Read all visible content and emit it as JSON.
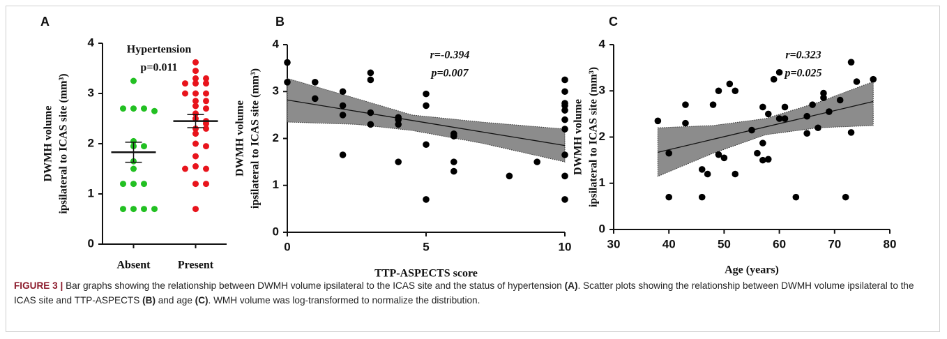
{
  "chart_data": [
    {
      "type": "strip",
      "letter": "A",
      "title": "Hypertension",
      "annotation": "p=0.011",
      "y_label": [
        "DWMH volume",
        "ipsilateral to ICAS site (mm³)"
      ],
      "categories": [
        "Absent",
        "Present"
      ],
      "series": [
        {
          "color": "#22c022",
          "values": [
            3.25,
            2.7,
            2.7,
            2.7,
            2.65,
            2.05,
            1.95,
            1.95,
            1.65,
            1.5,
            1.2,
            1.2,
            1.2,
            0.7,
            0.7,
            0.7,
            0.7
          ],
          "mean": 1.83,
          "sem": 0.2
        },
        {
          "color": "#e8141c",
          "values": [
            3.62,
            3.45,
            3.3,
            3.3,
            3.2,
            3.2,
            3.2,
            3.0,
            3.0,
            3.0,
            2.85,
            2.85,
            2.75,
            2.7,
            2.6,
            2.5,
            2.45,
            2.4,
            2.3,
            2.3,
            2.2,
            2.0,
            1.95,
            1.75,
            1.55,
            1.5,
            1.5,
            1.2,
            1.2,
            0.7
          ],
          "mean": 2.45,
          "sem": 0.13
        }
      ],
      "ylim": [
        0,
        4
      ],
      "yticks": [
        0,
        1,
        2,
        3,
        4
      ]
    },
    {
      "type": "scatter",
      "letter": "B",
      "annotation": [
        "r=-0.394",
        "p=0.007"
      ],
      "y_label": [
        "DWMH volume",
        "ipsilateral to ICAS site (mm³)"
      ],
      "x_label": "TTP-ASPECTS score",
      "x": [
        0,
        0,
        1,
        1,
        2,
        2,
        2,
        2,
        3,
        3,
        3,
        3,
        4,
        4,
        4,
        4,
        5,
        5,
        5,
        5,
        6,
        6,
        6,
        6,
        8,
        9,
        10,
        10,
        10,
        10,
        10,
        10,
        10,
        10,
        10,
        10
      ],
      "y": [
        3.62,
        3.2,
        3.2,
        2.85,
        3.0,
        2.7,
        2.5,
        1.65,
        3.4,
        3.25,
        2.55,
        2.3,
        2.45,
        2.4,
        2.3,
        1.5,
        2.95,
        2.7,
        1.87,
        0.7,
        2.1,
        2.05,
        1.5,
        1.3,
        1.2,
        1.5,
        3.25,
        3.0,
        2.75,
        2.7,
        2.6,
        2.4,
        2.2,
        1.65,
        1.2,
        0.7
      ],
      "fit": {
        "x": [
          0,
          10
        ],
        "y": [
          2.82,
          1.85
        ]
      },
      "band": {
        "x": [
          0,
          2.5,
          4.5,
          7,
          10
        ],
        "lower": [
          2.35,
          2.3,
          2.17,
          1.9,
          1.5
        ],
        "upper": [
          3.28,
          2.85,
          2.5,
          2.35,
          2.2
        ]
      },
      "xlim": [
        0,
        10
      ],
      "xticks": [
        0,
        5,
        10
      ],
      "ylim": [
        0,
        4
      ],
      "yticks": [
        0,
        1,
        2,
        3,
        4
      ]
    },
    {
      "type": "scatter",
      "letter": "C",
      "annotation": [
        "r=0.323",
        "p=0.025"
      ],
      "y_label": [
        "DWMH volume",
        "ipsilateral to ICAS site (mm³)"
      ],
      "x_label": "Age (years)",
      "x": [
        38,
        40,
        40,
        43,
        43,
        46,
        46,
        47,
        48,
        49,
        49,
        50,
        51,
        52,
        52,
        55,
        56,
        57,
        57,
        57,
        58,
        58,
        59,
        60,
        60,
        61,
        61,
        63,
        65,
        65,
        66,
        67,
        68,
        68,
        69,
        71,
        72,
        73,
        73,
        74,
        77
      ],
      "y": [
        2.35,
        1.65,
        0.7,
        2.7,
        2.3,
        1.3,
        0.7,
        1.2,
        2.7,
        3.0,
        1.62,
        1.55,
        3.15,
        3.0,
        1.2,
        2.15,
        1.65,
        2.65,
        1.87,
        1.5,
        2.5,
        1.52,
        3.25,
        3.4,
        2.4,
        2.65,
        2.4,
        0.7,
        2.45,
        2.08,
        2.7,
        2.2,
        2.95,
        2.85,
        2.55,
        2.8,
        0.7,
        3.62,
        2.1,
        3.2,
        3.25
      ],
      "fit": {
        "x": [
          38,
          77
        ],
        "y": [
          1.67,
          2.77
        ]
      },
      "band": {
        "x": [
          38,
          48,
          57.5,
          67,
          77
        ],
        "lower": [
          1.15,
          1.65,
          2.05,
          2.2,
          2.25
        ],
        "upper": [
          2.2,
          2.25,
          2.4,
          2.75,
          3.2
        ]
      },
      "xlim": [
        30,
        80
      ],
      "xticks": [
        30,
        40,
        50,
        60,
        70,
        80
      ],
      "ylim": [
        0,
        4
      ],
      "yticks": [
        0,
        1,
        2,
        3,
        4
      ]
    }
  ],
  "caption": {
    "label": "FIGURE 3 |",
    "parts": [
      "Bar graphs showing the relationship between DWMH volume ipsilateral to the ICAS site and the status of hypertension ",
      "(A)",
      ". Scatter plots showing the relationship between DWMH volume ipsilateral to the ICAS site and TTP-ASPECTS ",
      "(B)",
      " and age ",
      "(C)",
      ". WMH volume was log-transformed to normalize the distribution."
    ]
  }
}
